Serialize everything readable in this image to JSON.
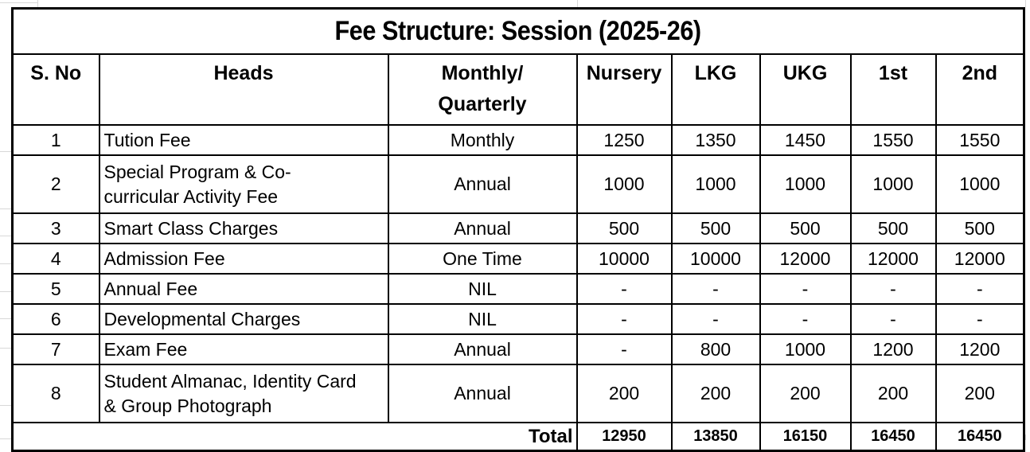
{
  "table": {
    "title": "Fee Structure: Session (2025-26)",
    "columns": [
      {
        "key": "sno",
        "label": "S. No"
      },
      {
        "key": "heads",
        "label": "Heads"
      },
      {
        "key": "schedule",
        "label": "Monthly/\nQuarterly"
      },
      {
        "key": "nursery",
        "label": "Nursery"
      },
      {
        "key": "lkg",
        "label": "LKG"
      },
      {
        "key": "ukg",
        "label": "UKG"
      },
      {
        "key": "first",
        "label": "1st"
      },
      {
        "key": "second",
        "label": "2nd"
      }
    ],
    "rows": [
      {
        "sno": "1",
        "heads": "Tution Fee",
        "schedule": "Monthly",
        "values": [
          "1250",
          "1350",
          "1450",
          "1550",
          "1550"
        ]
      },
      {
        "sno": "2",
        "heads": "Special Program & Co-\ncurricular Activity Fee",
        "schedule": "Annual",
        "values": [
          "1000",
          "1000",
          "1000",
          "1000",
          "1000"
        ]
      },
      {
        "sno": "3",
        "heads": "Smart Class Charges",
        "schedule": "Annual",
        "values": [
          "500",
          "500",
          "500",
          "500",
          "500"
        ]
      },
      {
        "sno": "4",
        "heads": "Admission Fee",
        "schedule": "One Time",
        "values": [
          "10000",
          "10000",
          "12000",
          "12000",
          "12000"
        ]
      },
      {
        "sno": "5",
        "heads": "Annual Fee",
        "schedule": "NIL",
        "values": [
          "-",
          "-",
          "-",
          "-",
          "-"
        ]
      },
      {
        "sno": "6",
        "heads": "Developmental Charges",
        "schedule": "NIL",
        "values": [
          "-",
          "-",
          "-",
          "-",
          "-"
        ]
      },
      {
        "sno": "7",
        "heads": "Exam Fee",
        "schedule": "Annual",
        "values": [
          "-",
          "800",
          "1000",
          "1200",
          "1200"
        ]
      },
      {
        "sno": "8",
        "heads": "Student Almanac, Identity Card\n& Group Photograph",
        "schedule": "Annual",
        "values": [
          "200",
          "200",
          "200",
          "200",
          "200"
        ]
      }
    ],
    "total": {
      "label": "Total",
      "values": [
        "12950",
        "13850",
        "16150",
        "16450",
        "16450"
      ]
    }
  },
  "colors": {
    "text": "#000000",
    "border": "#000000",
    "background": "#ffffff",
    "margin_gridline": "#d8d8d8"
  }
}
